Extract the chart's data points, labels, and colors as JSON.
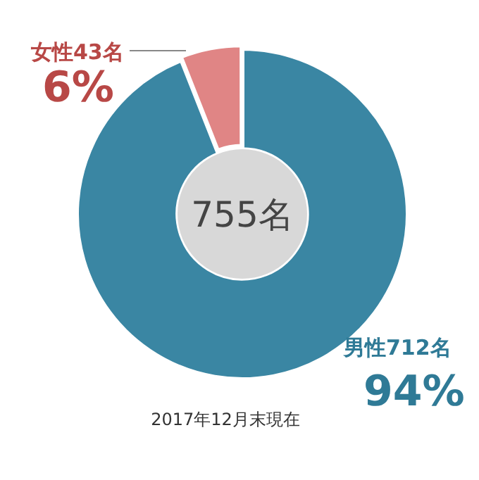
{
  "chart_data": {
    "type": "donut",
    "categories": [
      "男性712名",
      "女性43名"
    ],
    "values": [
      94,
      6
    ],
    "colors": [
      "#3a86a3",
      "#e08585"
    ],
    "value_labels": [
      "94%",
      "6%"
    ],
    "annotations": [
      "755名",
      "2017年12月末現在"
    ]
  }
}
